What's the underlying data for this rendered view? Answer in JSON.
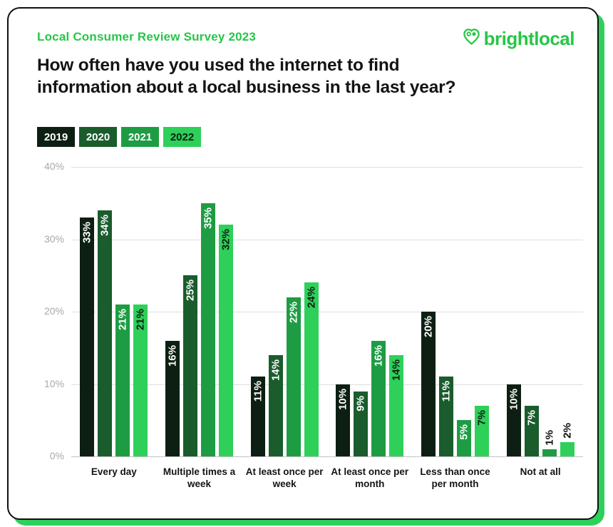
{
  "page": {
    "eyebrow": "Local Consumer Review Survey 2023",
    "title": "How often have you used the internet to find information about a local business in the last year?",
    "logo_text": "brightlocal"
  },
  "colors": {
    "accent_green": "#27c647",
    "shadow_green": "#2ed05a",
    "card_border": "#0f0f0f",
    "grid_line": "#dedede",
    "axis_tick_text": "#a8a8a8"
  },
  "chart_data": {
    "type": "bar",
    "title": "How often have you used the internet to find information about a local business in the last year?",
    "categories": [
      "Every day",
      "Multiple times a week",
      "At least once per week",
      "At least once per month",
      "Less than once per month",
      "Not at all"
    ],
    "series": [
      {
        "name": "2019",
        "color": "#0d1f12",
        "label_color": "#ffffff",
        "values": [
          33,
          16,
          11,
          10,
          20,
          10
        ]
      },
      {
        "name": "2020",
        "color": "#1a5c2c",
        "label_color": "#ffffff",
        "values": [
          34,
          25,
          14,
          9,
          11,
          7
        ]
      },
      {
        "name": "2021",
        "color": "#1e9c44",
        "label_color": "#ffffff",
        "values": [
          21,
          35,
          22,
          16,
          5,
          1
        ]
      },
      {
        "name": "2022",
        "color": "#2ed05a",
        "label_color": "#0d1f12",
        "values": [
          21,
          32,
          24,
          14,
          7,
          2
        ]
      }
    ],
    "value_suffix": "%",
    "ylim": [
      0,
      40
    ],
    "yticks": [
      0,
      10,
      20,
      30,
      40
    ],
    "ytick_labels": [
      "0%",
      "10%",
      "20%",
      "30%",
      "40%"
    ],
    "grid": true,
    "legend_position": "top-left",
    "xlabel": "",
    "ylabel": ""
  }
}
